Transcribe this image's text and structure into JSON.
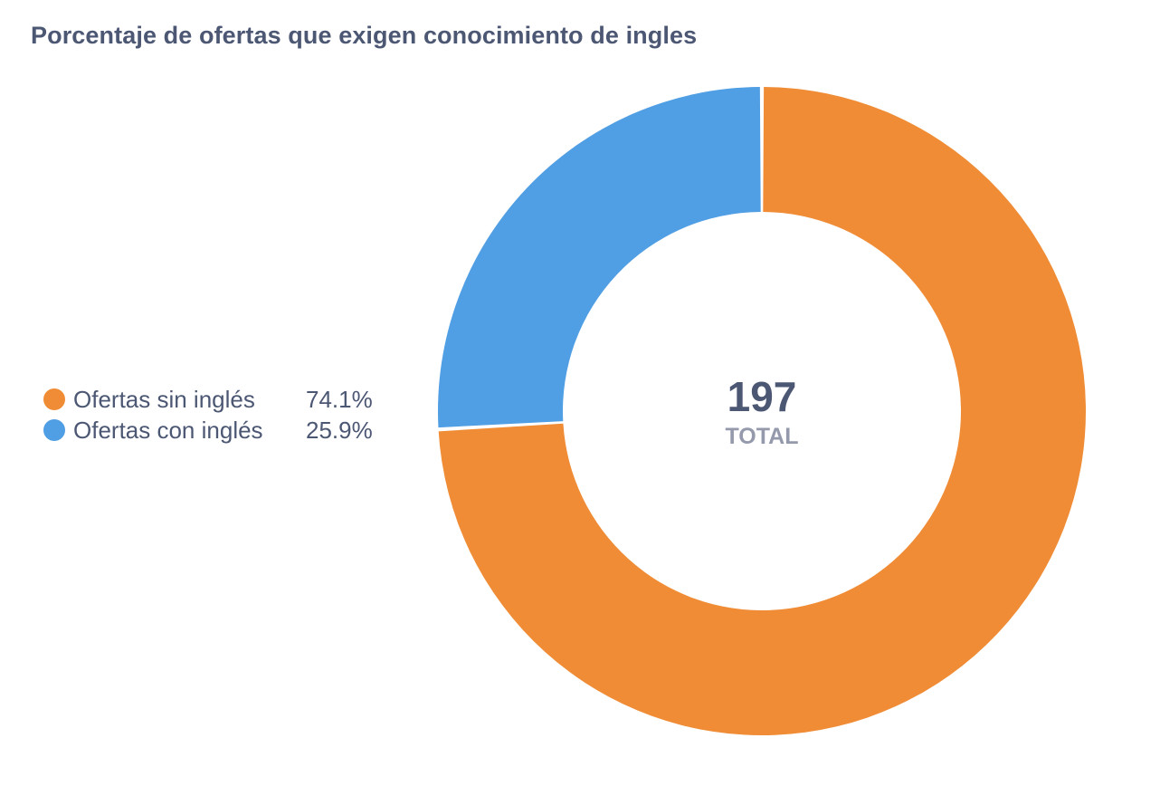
{
  "chart_data": {
    "type": "pie",
    "title": "Porcentaje de ofertas que exigen conocimiento de ingles",
    "categories": [
      "Ofertas sin inglés",
      "Ofertas con inglés"
    ],
    "values": [
      74.1,
      25.9
    ],
    "value_labels": [
      "74.1%",
      "25.9%"
    ],
    "colors": [
      "#ef8c35",
      "#509ee3"
    ],
    "total": "197",
    "total_label": "TOTAL",
    "legend_position": "left",
    "style": "donut"
  }
}
